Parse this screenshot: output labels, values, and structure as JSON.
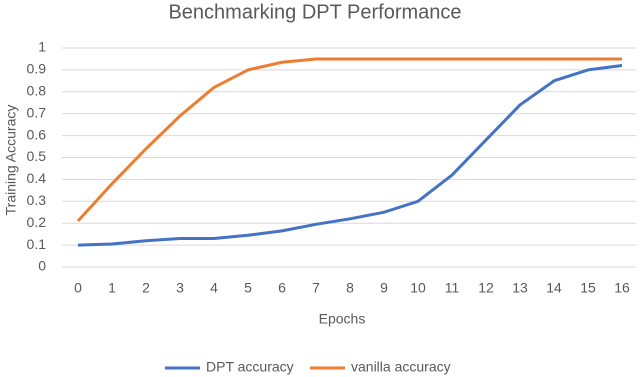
{
  "chart_data": {
    "type": "line",
    "title": "Benchmarking DPT Performance",
    "x_label": "Epochs",
    "y_label": "Training Accuracy",
    "x": [
      0,
      1,
      2,
      3,
      4,
      5,
      6,
      7,
      8,
      9,
      10,
      11,
      12,
      13,
      14,
      15,
      16
    ],
    "xlim": [
      0,
      16
    ],
    "xticks": [
      0,
      1,
      2,
      3,
      4,
      5,
      6,
      7,
      8,
      9,
      10,
      11,
      12,
      13,
      14,
      15,
      16
    ],
    "ylim": [
      0,
      1
    ],
    "yticks": [
      0,
      0.1,
      0.2,
      0.3,
      0.4,
      0.5,
      0.6,
      0.7,
      0.8,
      0.9,
      1
    ],
    "grid": true,
    "legend": "bottom",
    "series": [
      {
        "name": "DPT accuracy",
        "color": "#4472c4",
        "values": [
          0.1,
          0.105,
          0.12,
          0.13,
          0.13,
          0.145,
          0.165,
          0.195,
          0.22,
          0.25,
          0.3,
          0.42,
          0.58,
          0.74,
          0.85,
          0.9,
          0.92
        ]
      },
      {
        "name": "vanilla accuracy",
        "color": "#ed7d31",
        "values": [
          0.21,
          0.38,
          0.54,
          0.69,
          0.82,
          0.9,
          0.935,
          0.95,
          0.95,
          0.95,
          0.95,
          0.95,
          0.95,
          0.95,
          0.95,
          0.95,
          0.95
        ]
      }
    ]
  }
}
